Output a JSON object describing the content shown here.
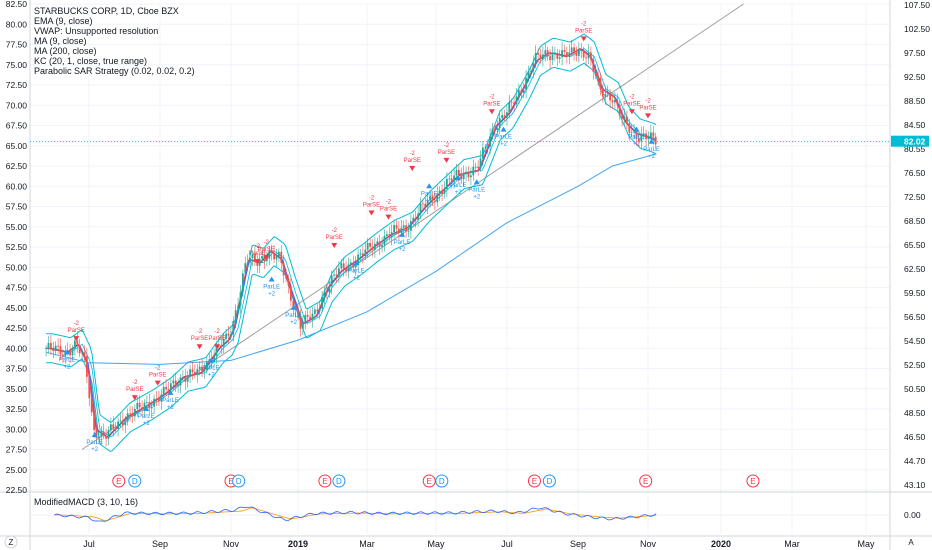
{
  "legend": {
    "title": "STARBUCKS CORP, 1D, Cboe BZX",
    "items": [
      "EMA (9, close)",
      "VWAP: Unsupported resolution",
      "MA (9, close)",
      "MA (200, close)",
      "KC (20, 1, close, true range)",
      "Parabolic SAR Strategy (0.02, 0.02, 0.2)"
    ]
  },
  "macd_legend": "ModifiedMACD (3, 10, 16)",
  "last_price_label": "82.02",
  "last_price_label2": "80.55",
  "corner_left": "Z",
  "corner_right": "A",
  "colors": {
    "up": "#26a69a",
    "down": "#ef5350",
    "ema": "#f23645",
    "ma9": "#2962ff",
    "ma200": "#42a5f5",
    "kc": "#00bcd4",
    "trend": "#9e9e9e",
    "sar_long": "#2196f3",
    "sar_short": "#f23645",
    "macd": "#2962ff",
    "signal": "#ff9800"
  },
  "chart_data": {
    "type": "line",
    "title": "STARBUCKS CORP, 1D, Cboe BZX",
    "x_labels": [
      "Jul",
      "Sep",
      "Nov",
      "2019",
      "Mar",
      "May",
      "Jul",
      "Sep",
      "Nov",
      "2020",
      "Mar",
      "May"
    ],
    "left_axis": {
      "ylim": [
        22.5,
        82.5
      ],
      "ticks": [
        "82.50",
        "80.00",
        "77.50",
        "75.00",
        "72.50",
        "70.00",
        "67.50",
        "65.00",
        "62.50",
        "60.00",
        "57.50",
        "55.00",
        "52.50",
        "50.00",
        "47.50",
        "45.00",
        "42.50",
        "40.00",
        "37.50",
        "35.00",
        "32.50",
        "30.00",
        "27.50",
        "25.00",
        "22.50"
      ]
    },
    "right_axis": {
      "ticks": [
        "107.50",
        "102.50",
        "97.50",
        "92.50",
        "88.50",
        "84.50",
        "80.55",
        "76.50",
        "72.50",
        "68.50",
        "65.50",
        "62.50",
        "59.50",
        "56.50",
        "54.50",
        "52.50",
        "50.50",
        "48.50",
        "46.50",
        "44.70",
        "43.10"
      ]
    },
    "close_series": {
      "name": "",
      "x": [
        "2018-05-25",
        "2018-06-10",
        "2018-06-20",
        "2018-06-28",
        "2018-07-05",
        "2018-07-15",
        "2018-08-01",
        "2018-08-20",
        "2018-09-05",
        "2018-09-20",
        "2018-10-05",
        "2018-10-20",
        "2018-10-28",
        "2018-11-02",
        "2018-11-15",
        "2018-11-25",
        "2018-12-05",
        "2018-12-15",
        "2018-12-24",
        "2019-01-03",
        "2019-01-15",
        "2019-01-25",
        "2019-02-05",
        "2019-02-20",
        "2019-03-05",
        "2019-03-20",
        "2019-04-05",
        "2019-04-20",
        "2019-05-05",
        "2019-05-20",
        "2019-06-05",
        "2019-06-20",
        "2019-07-01",
        "2019-07-15",
        "2019-07-25",
        "2019-08-05",
        "2019-08-20",
        "2019-09-01",
        "2019-09-10",
        "2019-09-20",
        "2019-10-01",
        "2019-10-10",
        "2019-10-20",
        "2019-10-31",
        "2019-11-08"
      ],
      "values": [
        40.0,
        39.5,
        40.5,
        38.0,
        30.0,
        29.0,
        31.5,
        33.0,
        34.5,
        36.5,
        37.0,
        40.0,
        41.0,
        42.5,
        51.0,
        50.5,
        52.0,
        51.0,
        47.0,
        43.0,
        44.0,
        47.5,
        49.5,
        51.0,
        52.5,
        54.0,
        55.0,
        57.5,
        59.5,
        61.5,
        62.0,
        67.5,
        69.0,
        72.5,
        75.5,
        76.5,
        76.0,
        77.0,
        76.0,
        72.0,
        71.0,
        68.0,
        66.5,
        66.0,
        65.5
      ]
    },
    "ma200": {
      "name": "",
      "x": [
        "2018-05-25",
        "2018-07-01",
        "2018-09-01",
        "2018-11-01",
        "2019-01-01",
        "2019-03-01",
        "2019-05-01",
        "2019-07-01",
        "2019-09-01",
        "2019-10-01",
        "2019-11-08"
      ],
      "values": [
        39.5,
        38.2,
        38.0,
        38.5,
        41.0,
        44.5,
        49.5,
        55.5,
        60.0,
        62.5,
        64.0
      ]
    },
    "trendline": {
      "from": {
        "x": "2018-06-25",
        "y": 27.5
      },
      "to": {
        "x": "2020-01-20",
        "y": 82.5
      }
    },
    "sar_events": [
      {
        "x": "2018-06-12",
        "y": 39.0,
        "type": "long",
        "label": "ParLE",
        "amount": "+2"
      },
      {
        "x": "2018-06-20",
        "y": 41.5,
        "type": "short",
        "label": "ParSE",
        "amount": "-2"
      },
      {
        "x": "2018-07-06",
        "y": 28.8,
        "type": "long",
        "label": "ParLE",
        "amount": "+2"
      },
      {
        "x": "2018-08-10",
        "y": 34.2,
        "type": "short",
        "label": "ParSE",
        "amount": "-2"
      },
      {
        "x": "2018-08-20",
        "y": 32.0,
        "type": "long",
        "label": "ParLE",
        "amount": "+2"
      },
      {
        "x": "2018-08-30",
        "y": 36.0,
        "type": "short",
        "label": "ParSE",
        "amount": "-2"
      },
      {
        "x": "2018-09-10",
        "y": 34.0,
        "type": "long",
        "label": "ParLE",
        "amount": "+2"
      },
      {
        "x": "2018-10-05",
        "y": 40.5,
        "type": "short",
        "label": "ParSE",
        "amount": "-2"
      },
      {
        "x": "2018-10-15",
        "y": 38.0,
        "type": "long",
        "label": "ParLE",
        "amount": "+2"
      },
      {
        "x": "2018-10-20",
        "y": 40.5,
        "type": "short",
        "label": "ParSE",
        "amount": "-2"
      },
      {
        "x": "2018-11-25",
        "y": 51.0,
        "type": "short",
        "label": "ParSE",
        "amount": "-2"
      },
      {
        "x": "2018-12-03",
        "y": 51.5,
        "type": "short",
        "label": "ParSE",
        "amount": "-2"
      },
      {
        "x": "2018-12-08",
        "y": 48.0,
        "type": "long",
        "label": "ParLE",
        "amount": "+2"
      },
      {
        "x": "2018-12-28",
        "y": 44.5,
        "type": "long",
        "label": "ParLE",
        "amount": "+2"
      },
      {
        "x": "2019-02-01",
        "y": 53.0,
        "type": "short",
        "label": "ParSE",
        "amount": "-2"
      },
      {
        "x": "2019-02-20",
        "y": 50.0,
        "type": "long",
        "label": "ParLE",
        "amount": "+2"
      },
      {
        "x": "2019-03-05",
        "y": 57.0,
        "type": "short",
        "label": "ParSE",
        "amount": "-2"
      },
      {
        "x": "2019-03-20",
        "y": 56.5,
        "type": "short",
        "label": "ParSE",
        "amount": "-2"
      },
      {
        "x": "2019-04-01",
        "y": 53.5,
        "type": "long",
        "label": "ParLE",
        "amount": "+2"
      },
      {
        "x": "2019-04-10",
        "y": 62.5,
        "type": "short",
        "label": "ParSE",
        "amount": "-2"
      },
      {
        "x": "2019-04-25",
        "y": 59.5,
        "type": "long",
        "label": "ParLE",
        "amount": "+2"
      },
      {
        "x": "2019-05-10",
        "y": 63.5,
        "type": "short",
        "label": "ParSE",
        "amount": "-2"
      },
      {
        "x": "2019-05-20",
        "y": 60.5,
        "type": "long",
        "label": "ParLE",
        "amount": "+2"
      },
      {
        "x": "2019-06-05",
        "y": 60.0,
        "type": "long",
        "label": "ParLE",
        "amount": "+2"
      },
      {
        "x": "2019-06-18",
        "y": 69.5,
        "type": "short",
        "label": "ParSE",
        "amount": "-2"
      },
      {
        "x": "2019-06-28",
        "y": 66.5,
        "type": "long",
        "label": "ParLE",
        "amount": "+2"
      },
      {
        "x": "2019-09-06",
        "y": 78.5,
        "type": "short",
        "label": "ParSE",
        "amount": "-2"
      },
      {
        "x": "2019-10-18",
        "y": 69.5,
        "type": "short",
        "label": "ParSE",
        "amount": "-2"
      },
      {
        "x": "2019-10-22",
        "y": 66.5,
        "type": "long",
        "label": "ParLE",
        "amount": "+2"
      },
      {
        "x": "2019-11-01",
        "y": 69.0,
        "type": "short",
        "label": "ParSE",
        "amount": "-2"
      },
      {
        "x": "2019-11-04",
        "y": 65.0,
        "type": "long",
        "label": "ParLE",
        "amount": "+2"
      }
    ],
    "events": [
      {
        "x": "2018-07-27",
        "label": "E"
      },
      {
        "x": "2018-08-10",
        "label": "D"
      },
      {
        "x": "2018-11-01",
        "label": "E"
      },
      {
        "x": "2018-11-08",
        "label": "D"
      },
      {
        "x": "2019-01-24",
        "label": "E"
      },
      {
        "x": "2019-02-05",
        "label": "D"
      },
      {
        "x": "2019-04-25",
        "label": "E"
      },
      {
        "x": "2019-05-06",
        "label": "D"
      },
      {
        "x": "2019-07-25",
        "label": "E"
      },
      {
        "x": "2019-08-07",
        "label": "D"
      },
      {
        "x": "2019-10-30",
        "label": "E"
      },
      {
        "x": "2020-01-28",
        "label": "E"
      }
    ],
    "macd_axis": {
      "ticks": [
        "0.00"
      ]
    },
    "macd_hist": {
      "x": [
        "2018-06-01",
        "2018-07-01",
        "2018-07-10",
        "2018-08-01",
        "2018-09-01",
        "2018-10-01",
        "2018-11-05",
        "2018-11-15",
        "2018-12-01",
        "2018-12-20",
        "2019-01-15",
        "2019-02-15",
        "2019-03-15",
        "2019-04-15",
        "2019-05-15",
        "2019-06-20",
        "2019-07-10",
        "2019-07-30",
        "2019-08-20",
        "2019-09-15",
        "2019-10-01",
        "2019-10-20",
        "2019-11-08"
      ],
      "values": [
        0.0,
        -0.5,
        -1.5,
        0.4,
        0.3,
        0.4,
        1.0,
        1.8,
        0.5,
        -1.0,
        0.3,
        0.5,
        0.3,
        0.4,
        0.4,
        0.8,
        0.4,
        1.5,
        0.3,
        -0.5,
        -0.8,
        -0.4,
        0.1
      ]
    }
  }
}
